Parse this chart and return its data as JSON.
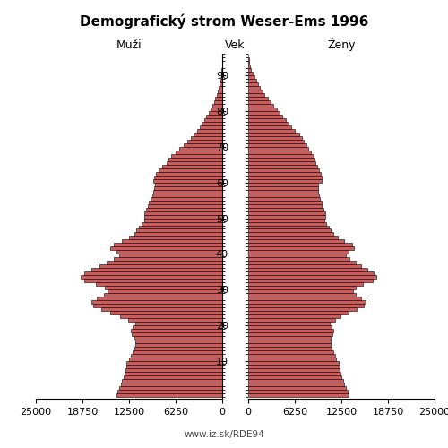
{
  "title": "Demografický strom Weser-Ems 1996",
  "label_left": "Muži",
  "label_right": "Ženy",
  "label_center": "Vek",
  "footer": "www.iz.sk/RDE94",
  "bar_color": "#cd5c5c",
  "bar_edge_color": "#000000",
  "age_groups": [
    0,
    1,
    2,
    3,
    4,
    5,
    6,
    7,
    8,
    9,
    10,
    11,
    12,
    13,
    14,
    15,
    16,
    17,
    18,
    19,
    20,
    21,
    22,
    23,
    24,
    25,
    26,
    27,
    28,
    29,
    30,
    31,
    32,
    33,
    34,
    35,
    36,
    37,
    38,
    39,
    40,
    41,
    42,
    43,
    44,
    45,
    46,
    47,
    48,
    49,
    50,
    51,
    52,
    53,
    54,
    55,
    56,
    57,
    58,
    59,
    60,
    61,
    62,
    63,
    64,
    65,
    66,
    67,
    68,
    69,
    70,
    71,
    72,
    73,
    74,
    75,
    76,
    77,
    78,
    79,
    80,
    81,
    82,
    83,
    84,
    85,
    86,
    87,
    88,
    89,
    90,
    91,
    92,
    93,
    94,
    95
  ],
  "males": [
    14200,
    14000,
    13800,
    13600,
    13400,
    13200,
    13100,
    13000,
    12900,
    12800,
    12500,
    12200,
    12000,
    11800,
    11700,
    11600,
    11800,
    12100,
    12200,
    12000,
    11600,
    12600,
    13700,
    15000,
    16200,
    17300,
    17500,
    16800,
    15900,
    15400,
    15800,
    17000,
    18500,
    19000,
    18500,
    17500,
    16500,
    15500,
    14500,
    13800,
    14200,
    15000,
    14600,
    13500,
    12500,
    11800,
    11500,
    11200,
    10800,
    10500,
    10500,
    10400,
    10200,
    10000,
    9800,
    9600,
    9400,
    9200,
    9100,
    9000,
    9200,
    9100,
    8900,
    8500,
    8000,
    7500,
    7200,
    6800,
    6300,
    5800,
    5200,
    4700,
    4200,
    3800,
    3400,
    3000,
    2700,
    2400,
    2100,
    1800,
    1500,
    1300,
    1100,
    900,
    750,
    600,
    480,
    360,
    250,
    170,
    110,
    70,
    40,
    20,
    10,
    5
  ],
  "females": [
    13500,
    13300,
    13100,
    12900,
    12700,
    12500,
    12400,
    12300,
    12200,
    12100,
    11800,
    11600,
    11400,
    11200,
    11100,
    11000,
    11100,
    11300,
    11400,
    11200,
    10900,
    11600,
    12400,
    13500,
    14600,
    15500,
    15700,
    15100,
    14400,
    14000,
    14400,
    15400,
    16700,
    17200,
    16800,
    16000,
    15200,
    14400,
    13600,
    13100,
    13500,
    14200,
    13900,
    12900,
    12000,
    11400,
    11100,
    10800,
    10500,
    10200,
    10300,
    10300,
    10100,
    9900,
    9800,
    9600,
    9500,
    9400,
    9400,
    9400,
    9800,
    9800,
    9700,
    9500,
    9200,
    9000,
    8900,
    8800,
    8400,
    8000,
    7800,
    7500,
    7200,
    6800,
    6300,
    5800,
    5400,
    5000,
    4600,
    4200,
    3800,
    3400,
    3000,
    2600,
    2200,
    1900,
    1600,
    1300,
    1050,
    800,
    580,
    400,
    250,
    140,
    70,
    30
  ],
  "xlim": 25000,
  "xticks": [
    25000,
    18750,
    12500,
    6250,
    0
  ],
  "xtick_labels_left": [
    "25000",
    "18750",
    "12500",
    "6250",
    "0"
  ],
  "xtick_labels_right": [
    "0",
    "6250",
    "12500",
    "18750",
    "25000"
  ],
  "yticks": [
    10,
    20,
    30,
    40,
    50,
    60,
    70,
    80,
    90
  ],
  "figsize": [
    5.0,
    5.0
  ],
  "dpi": 100,
  "background_color": "#ffffff",
  "spine_color": "#000000",
  "tick_fontsize": 8,
  "title_fontsize": 11,
  "label_fontsize": 9,
  "footer_fontsize": 7.5
}
